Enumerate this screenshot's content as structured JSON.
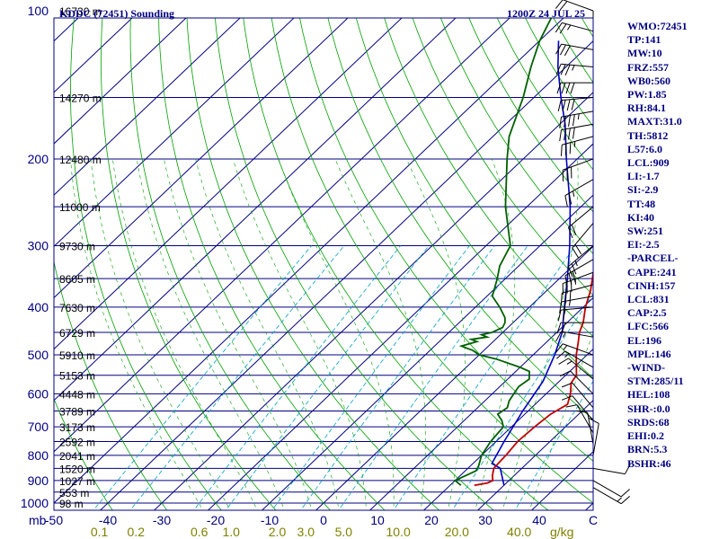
{
  "header": {
    "station": "KDDC (72451) Sounding",
    "time": "1200Z 24 JUL 25"
  },
  "chart_data": {
    "type": "line",
    "pressure_ticks": [
      {
        "p": 100,
        "label": "100"
      },
      {
        "p": 200,
        "label": "200"
      },
      {
        "p": 300,
        "label": "300"
      },
      {
        "p": 400,
        "label": "400"
      },
      {
        "p": 500,
        "label": "500"
      },
      {
        "p": 600,
        "label": "600"
      },
      {
        "p": 700,
        "label": "700"
      },
      {
        "p": 800,
        "label": "800"
      },
      {
        "p": 900,
        "label": "900"
      },
      {
        "p": 1000,
        "label": "1000"
      }
    ],
    "pressure_unit": "mb",
    "height_labels": [
      {
        "p": 100,
        "label": "16730 m"
      },
      {
        "p": 150,
        "label": "14270 m"
      },
      {
        "p": 200,
        "label": "12480 m"
      },
      {
        "p": 250,
        "label": "11000 m"
      },
      {
        "p": 300,
        "label": "9730 m"
      },
      {
        "p": 350,
        "label": "8605 m"
      },
      {
        "p": 400,
        "label": "7630 m"
      },
      {
        "p": 450,
        "label": "6729 m"
      },
      {
        "p": 500,
        "label": "5910 m"
      },
      {
        "p": 550,
        "label": "5153 m"
      },
      {
        "p": 600,
        "label": "4448 m"
      },
      {
        "p": 650,
        "label": "3789 m"
      },
      {
        "p": 700,
        "label": "3173 m"
      },
      {
        "p": 750,
        "label": "2592 m"
      },
      {
        "p": 800,
        "label": "2041 m"
      },
      {
        "p": 850,
        "label": "1520 m"
      },
      {
        "p": 900,
        "label": "1027 m"
      },
      {
        "p": 950,
        "label": "553 m"
      },
      {
        "p": 1000,
        "label": "98 m"
      }
    ],
    "temperature_ticks": [
      {
        "t": -50,
        "label": "-50"
      },
      {
        "t": -40,
        "label": "-40"
      },
      {
        "t": -30,
        "label": "-30"
      },
      {
        "t": -20,
        "label": "-20"
      },
      {
        "t": -10,
        "label": "-10"
      },
      {
        "t": 0,
        "label": "0"
      },
      {
        "t": 10,
        "label": "10"
      },
      {
        "t": 20,
        "label": "20"
      },
      {
        "t": 30,
        "label": "30"
      },
      {
        "t": 40,
        "label": "40"
      },
      {
        "t": 50,
        "label": "C"
      }
    ],
    "mixing_ratio_ticks": [
      {
        "w": 0.1,
        "label": "0.1"
      },
      {
        "w": 0.2,
        "label": "0.2"
      },
      {
        "w": 0.6,
        "label": "0.6"
      },
      {
        "w": 1.0,
        "label": "1.0"
      },
      {
        "w": 2.0,
        "label": "2.0"
      },
      {
        "w": 3.0,
        "label": "3.0"
      },
      {
        "w": 5.0,
        "label": "5.0"
      },
      {
        "w": 10.0,
        "label": "10.0"
      },
      {
        "w": 20.0,
        "label": "20.0"
      },
      {
        "w": 40.0,
        "label": "40.0"
      }
    ],
    "mixing_ratio_unit": "g/kg",
    "temperature": [
      [
        920,
        24.5
      ],
      [
        910,
        26.5
      ],
      [
        900,
        27.0
      ],
      [
        880,
        26.0
      ],
      [
        850,
        24.8
      ],
      [
        800,
        24.5
      ],
      [
        750,
        24.0
      ],
      [
        700,
        24.3
      ],
      [
        660,
        24.8
      ],
      [
        630,
        26.0
      ],
      [
        600,
        24.5
      ],
      [
        570,
        22.5
      ],
      [
        550,
        22.0
      ],
      [
        500,
        18.0
      ],
      [
        470,
        15.8
      ],
      [
        450,
        14.2
      ],
      [
        430,
        13.0
      ],
      [
        400,
        10.4
      ],
      [
        370,
        8.1
      ],
      [
        340,
        5.1
      ],
      [
        310,
        2.2
      ],
      [
        300,
        0.8
      ],
      [
        250,
        -6.5
      ],
      [
        230,
        -10.0
      ],
      [
        200,
        -15.5
      ],
      [
        190,
        -18.5
      ],
      [
        170,
        -20.5
      ],
      [
        160,
        -22.5
      ],
      [
        150,
        -24.5
      ],
      [
        140,
        -26.0
      ],
      [
        130,
        -28.5
      ],
      [
        123,
        -30.0
      ],
      [
        115,
        -29.0
      ],
      [
        105,
        -26.0
      ],
      [
        100,
        -24.0
      ]
    ],
    "dewpoint": [
      [
        920,
        22.0
      ],
      [
        910,
        21.0
      ],
      [
        900,
        20.0
      ],
      [
        880,
        21.0
      ],
      [
        860,
        22.0
      ],
      [
        840,
        21.5
      ],
      [
        800,
        20.0
      ],
      [
        750,
        19.0
      ],
      [
        700,
        18.5
      ],
      [
        680,
        17.0
      ],
      [
        660,
        15.0
      ],
      [
        640,
        15.5
      ],
      [
        620,
        14.5
      ],
      [
        600,
        14.0
      ],
      [
        580,
        13.5
      ],
      [
        560,
        14.0
      ],
      [
        540,
        12.5
      ],
      [
        530,
        10.0
      ],
      [
        510,
        4.0
      ],
      [
        500,
        0.0
      ],
      [
        490,
        -2.0
      ],
      [
        480,
        -5.0
      ],
      [
        475,
        -4.0
      ],
      [
        470,
        -3.0
      ],
      [
        465,
        -4.5
      ],
      [
        460,
        -2.0
      ],
      [
        455,
        -3.5
      ],
      [
        450,
        -2.0
      ],
      [
        440,
        -1.0
      ],
      [
        430,
        -1.5
      ],
      [
        420,
        -2.5
      ],
      [
        400,
        -5.5
      ],
      [
        380,
        -9.0
      ],
      [
        350,
        -11.5
      ],
      [
        330,
        -13.5
      ],
      [
        300,
        -15.5
      ],
      [
        250,
        -24.0
      ],
      [
        200,
        -33.0
      ],
      [
        180,
        -37.0
      ],
      [
        150,
        -42.0
      ],
      [
        130,
        -46.5
      ],
      [
        115,
        -50.0
      ],
      [
        100,
        -53.0
      ]
    ],
    "parcel": [
      [
        920,
        30.0
      ],
      [
        850,
        26.0
      ],
      [
        831,
        23.5
      ],
      [
        750,
        21.5
      ],
      [
        650,
        19.0
      ],
      [
        566,
        17.0
      ],
      [
        500,
        14.0
      ],
      [
        450,
        11.0
      ],
      [
        400,
        6.5
      ],
      [
        350,
        1.5
      ],
      [
        300,
        -4.5
      ],
      [
        250,
        -12.0
      ],
      [
        200,
        -22.0
      ],
      [
        170,
        -29.0
      ],
      [
        150,
        -35.0
      ],
      [
        130,
        -41.5
      ],
      [
        115,
        -46.5
      ]
    ],
    "wind_barbs": [
      {
        "p": 100,
        "dir": 290,
        "spd": 20
      },
      {
        "p": 110,
        "dir": 285,
        "spd": 25
      },
      {
        "p": 120,
        "dir": 280,
        "spd": 30
      },
      {
        "p": 130,
        "dir": 275,
        "spd": 35
      },
      {
        "p": 140,
        "dir": 270,
        "spd": 40
      },
      {
        "p": 150,
        "dir": 265,
        "spd": 40
      },
      {
        "p": 160,
        "dir": 260,
        "spd": 45
      },
      {
        "p": 170,
        "dir": 260,
        "spd": 40
      },
      {
        "p": 180,
        "dir": 255,
        "spd": 35
      },
      {
        "p": 200,
        "dir": 250,
        "spd": 30
      },
      {
        "p": 220,
        "dir": 240,
        "spd": 25
      },
      {
        "p": 250,
        "dir": 230,
        "spd": 20
      },
      {
        "p": 270,
        "dir": 220,
        "spd": 20
      },
      {
        "p": 300,
        "dir": 230,
        "spd": 25
      },
      {
        "p": 320,
        "dir": 240,
        "spd": 30
      },
      {
        "p": 340,
        "dir": 250,
        "spd": 35
      },
      {
        "p": 360,
        "dir": 255,
        "spd": 30
      },
      {
        "p": 380,
        "dir": 260,
        "spd": 25
      },
      {
        "p": 400,
        "dir": 265,
        "spd": 20
      },
      {
        "p": 430,
        "dir": 270,
        "spd": 20
      },
      {
        "p": 460,
        "dir": 280,
        "spd": 15
      },
      {
        "p": 500,
        "dir": 290,
        "spd": 15
      },
      {
        "p": 530,
        "dir": 300,
        "spd": 15
      },
      {
        "p": 560,
        "dir": 310,
        "spd": 15
      },
      {
        "p": 600,
        "dir": 315,
        "spd": 10
      },
      {
        "p": 640,
        "dir": 320,
        "spd": 10
      },
      {
        "p": 680,
        "dir": 320,
        "spd": 10
      },
      {
        "p": 720,
        "dir": 330,
        "spd": 10
      },
      {
        "p": 760,
        "dir": 350,
        "spd": 10
      },
      {
        "p": 800,
        "dir": 10,
        "spd": 10
      },
      {
        "p": 850,
        "dir": 100,
        "spd": 10
      },
      {
        "p": 900,
        "dir": 120,
        "spd": 10
      },
      {
        "p": 930,
        "dir": 120,
        "spd": 15
      }
    ]
  },
  "indices": [
    "WMO:72451",
    "TP:141",
    "MW:10",
    "FRZ:557",
    "WB0:560",
    "PW:1.85",
    "RH:84.1",
    "MAXT:31.0",
    "TH:5812",
    "L57:6.0",
    "LCL:909",
    "LI:-1.7",
    "SI:-2.9",
    "TT:48",
    "KI:40",
    "SW:251",
    "EI:-2.5",
    "-PARCEL-",
    "CAPE:241",
    "CINH:157",
    "LCL:831",
    "CAP:2.5",
    "LFC:566",
    "EL:196",
    "MPL:146",
    "-WIND-",
    "STM:285/11",
    "HEL:108",
    "SHR-:0.0",
    "SRDS:68",
    "EHI:0.2",
    "BRN:5.3",
    "BSHR:46"
  ],
  "colors": {
    "isobar": "#000080",
    "isotherm": "#000080",
    "dry_adiabat": "#00A000",
    "moist_adiabat": "#00A000",
    "mixing_ratio": "#00A0C0",
    "temperature": "#C00000",
    "dewpoint": "#006000",
    "parcel": "#0000C0",
    "axis_text": "#000080",
    "mixing_text": "#808000"
  }
}
